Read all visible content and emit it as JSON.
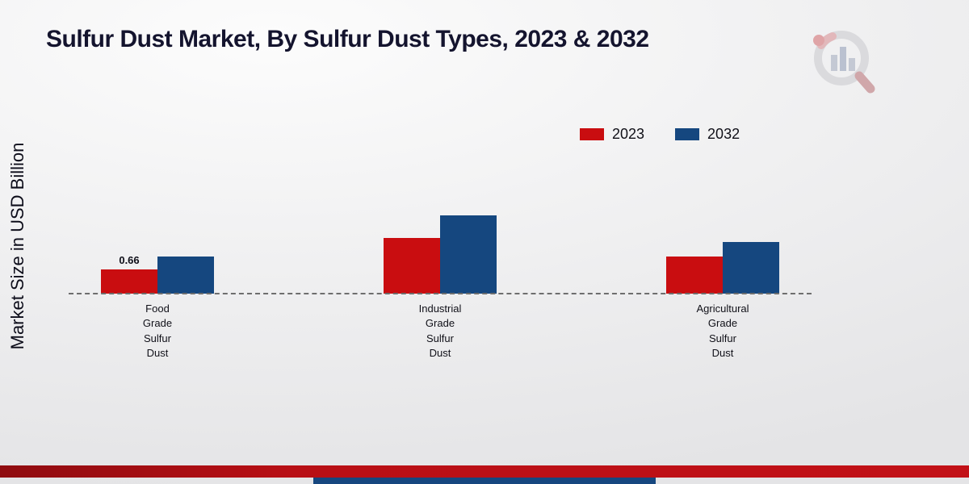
{
  "page": {
    "title": "Sulfur Dust Market, By Sulfur Dust Types, 2023 & 2032",
    "y_axis_label": "Market Size in USD Billion"
  },
  "legend": [
    {
      "label": "2023",
      "color": "#c90d10"
    },
    {
      "label": "2032",
      "color": "#15477f"
    }
  ],
  "colors": {
    "series_2023": "#c90d10",
    "series_2032": "#15477f",
    "footer_band_red": "#b80f15",
    "footer_band_blue": "#16477f",
    "title_text": "#14142e"
  },
  "chart_data": {
    "type": "bar",
    "title": "Sulfur Dust Market, By Sulfur Dust Types, 2023 & 2032",
    "ylabel": "Market Size in USD Billion",
    "xlabel": "",
    "categories": [
      "Food Grade Sulfur Dust",
      "Industrial Grade Sulfur Dust",
      "Agricultural Grade Sulfur Dust"
    ],
    "series": [
      {
        "name": "2023",
        "color": "#c90d10",
        "values": [
          0.66,
          1.5,
          1.0
        ]
      },
      {
        "name": "2032",
        "color": "#15477f",
        "values": [
          1.0,
          2.1,
          1.4
        ]
      }
    ],
    "annotations": [
      {
        "text": "0.66",
        "series_index": 0,
        "category_index": 0
      }
    ],
    "ylim": [
      0,
      2.2
    ],
    "grid": false,
    "baseline_style": "dashed",
    "legend_position": "top-right",
    "unit": "USD Billion"
  },
  "icons": {
    "logo": "market-research-magnifier-logo"
  }
}
